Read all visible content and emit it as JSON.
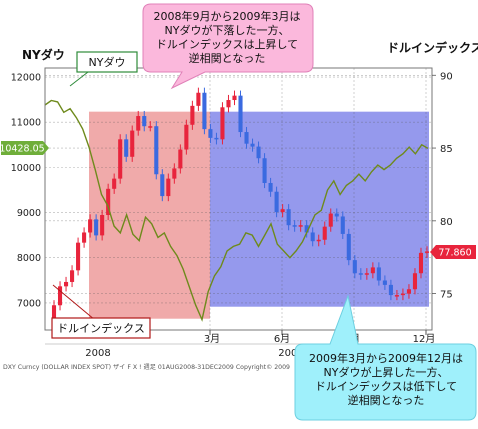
{
  "chart_data": {
    "type": "candlestick+line",
    "left_axis_title": "NYダウ",
    "right_axis_title": "ドルインデックス",
    "left_ticks": [
      12000,
      11000,
      10000,
      9000,
      8000,
      7000
    ],
    "right_ticks": [
      90,
      85,
      80,
      75
    ],
    "left_ylim": [
      6400,
      12200
    ],
    "right_ylim": [
      72.5,
      90.5
    ],
    "x_tick_labels": [
      "3月",
      "6月",
      "9月",
      "12月"
    ],
    "year_labels": [
      "2008",
      "2009"
    ],
    "source_text": "DXY Curncy (DOLLAR INDEX SPOT) ザイ F X ! 週足 01AUG2008-31DEC2009 Copyright© 2009",
    "last_dow_label": "10428.05",
    "last_dollar_label": "77.860",
    "series": [
      {
        "name": "NYダウ",
        "color": "#6e8a1c",
        "values": [
          11380,
          11480,
          11450,
          11220,
          11300,
          11100,
          10850,
          10450,
          9950,
          9400,
          9150,
          8700,
          8550,
          8950,
          8520,
          8380,
          8900,
          8750,
          8450,
          8550,
          8250,
          8050,
          7750,
          7350,
          6950,
          6630,
          7250,
          7600,
          7800,
          8150,
          8250,
          8300,
          8550,
          8500,
          8250,
          8500,
          8750,
          8300,
          8150,
          8000,
          8150,
          8350,
          8650,
          8950,
          9050,
          9500,
          9700,
          9400,
          9600,
          9700,
          9850,
          9700,
          9900,
          10050,
          9950,
          10050,
          10200,
          10300,
          10450,
          10300,
          10500,
          10420
        ]
      },
      {
        "name": "ドルインデックス",
        "values": [
          73.2,
          74.2,
          75.5,
          75.8,
          76.6,
          78.5,
          79.2,
          80.1,
          79.0,
          80.4,
          82.2,
          82.9,
          85.6,
          84.4,
          86.2,
          87.2,
          86.5,
          86.5,
          83.2,
          81.7,
          82.9,
          83.6,
          84.9,
          86.6,
          87.9,
          88.8,
          86.3,
          85.7,
          85.6,
          87.8,
          88.3,
          88.6,
          86.1,
          85.3,
          85.1,
          84.3,
          82.6,
          82.0,
          80.6,
          80.8,
          79.7,
          79.6,
          79.7,
          79.2,
          78.6,
          78.7,
          79.6,
          80.5,
          80.3,
          79.1,
          77.3,
          76.4,
          76.3,
          76.4,
          76.8,
          75.9,
          75.6,
          74.9,
          74.9,
          75.0,
          75.3,
          76.4,
          77.8,
          77.9
        ]
      }
    ],
    "annotations": [
      {
        "label": "NYダウ"
      },
      {
        "label": "ドルインデックス"
      },
      {
        "label": "2008年9月から2009年3月は\nNYダウが下落した一方、\nドルインデックスは上昇して\n逆相関となった"
      },
      {
        "label": "2009年3月から2009年12月は\nNYダウが上昇した一方、\nドルインデックスは低下して\n逆相関となった"
      }
    ]
  },
  "colors": {
    "period1": "#f0aaaa",
    "period2": "#8f94ec",
    "dow_line": "#6e8a1c",
    "candle_up": "#e8243c",
    "candle_down": "#3a6ae0",
    "dow_label_bg": "#6fae3a",
    "dollar_label_bg": "#e8243c",
    "callout_pink": "#fbb8dc",
    "callout_cyan": "#9ff0fb"
  }
}
